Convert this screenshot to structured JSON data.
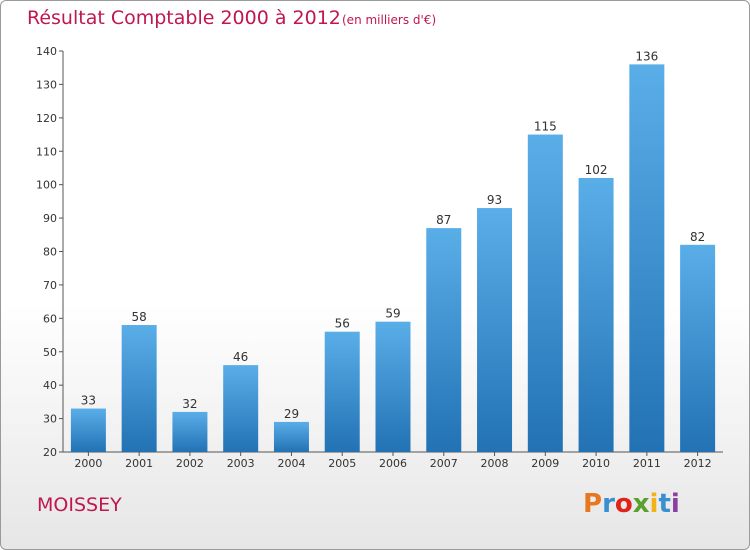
{
  "header": {
    "title": "Résultat Comptable 2000 à 2012",
    "subtitle": "(en milliers d'€)"
  },
  "footer": {
    "place": "MOISSEY",
    "brand": "Proxiti",
    "brand_colors": [
      "#e87722",
      "#3a8fd0",
      "#e2231a",
      "#5aa02c",
      "#f2b316",
      "#3a8fd0",
      "#8b3fa0"
    ]
  },
  "colors": {
    "bar_top": "#5aaee8",
    "bar_bottom": "#2272b4",
    "accent": "#c0174f"
  },
  "chart_data": {
    "type": "bar",
    "categories": [
      "2000",
      "2001",
      "2002",
      "2003",
      "2004",
      "2005",
      "2006",
      "2007",
      "2008",
      "2009",
      "2010",
      "2011",
      "2012"
    ],
    "values": [
      33,
      58,
      32,
      46,
      29,
      56,
      59,
      87,
      93,
      115,
      102,
      136,
      82
    ],
    "title": "Résultat Comptable 2000 à 2012",
    "xlabel": "",
    "ylabel": "",
    "ylim": [
      20,
      140
    ],
    "yticks": [
      20,
      30,
      40,
      50,
      60,
      70,
      80,
      90,
      100,
      110,
      120,
      130,
      140
    ],
    "grid": false,
    "data_labels": true
  }
}
